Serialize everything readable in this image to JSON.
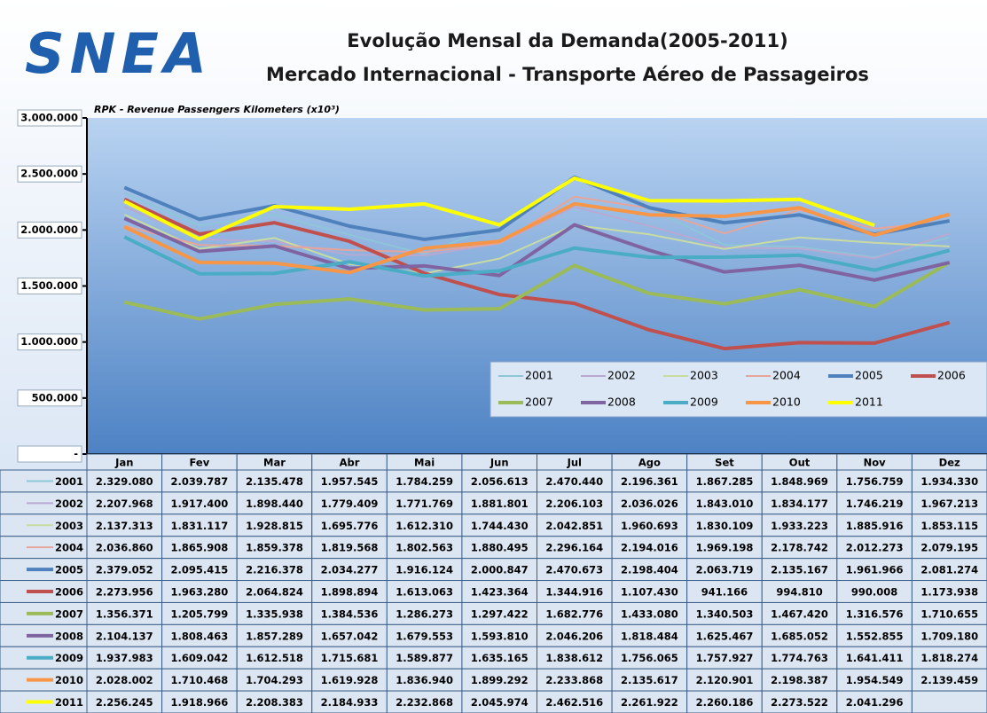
{
  "logo": "SNEA",
  "chart_data": {
    "type": "line",
    "title": "Evolução Mensal da Demanda(2005-2011)",
    "subtitle": "Mercado Internacional - Transporte Aéreo de Passageiros",
    "y_label": "RPK - Revenue Passengers Kilometers (x10³)",
    "categories": [
      "Jan",
      "Fev",
      "Mar",
      "Abr",
      "Mai",
      "Jun",
      "Jul",
      "Ago",
      "Set",
      "Out",
      "Nov",
      "Dez"
    ],
    "ylim": [
      0,
      3000000
    ],
    "yticks": [
      {
        "value": 0,
        "label": "-"
      },
      {
        "value": 500000,
        "label": "500.000"
      },
      {
        "value": 1000000,
        "label": "1.000.000"
      },
      {
        "value": 1500000,
        "label": "1.500.000"
      },
      {
        "value": 2000000,
        "label": "2.000.000"
      },
      {
        "value": 2500000,
        "label": "2.500.000"
      },
      {
        "value": 3000000,
        "label": "3.000.000"
      }
    ],
    "legend": "bottom-right",
    "series": [
      {
        "name": "2001",
        "color": "#8ec5d8",
        "values": [
          2329080,
          2039787,
          2135478,
          1957545,
          1784259,
          2056613,
          2470440,
          2196361,
          1867285,
          1848969,
          1756759,
          1934330
        ],
        "value_labels": [
          "2.329.080",
          "2.039.787",
          "2.135.478",
          "1.957.545",
          "1.784.259",
          "2.056.613",
          "2.470.440",
          "2.196.361",
          "1.867.285",
          "1.848.969",
          "1.756.759",
          "1.934.330"
        ]
      },
      {
        "name": "2002",
        "color": "#b9a9d2",
        "values": [
          2207968,
          1917400,
          1898440,
          1779409,
          1771769,
          1881801,
          2206103,
          2036026,
          1843010,
          1834177,
          1746219,
          1967213
        ],
        "value_labels": [
          "2.207.968",
          "1.917.400",
          "1.898.440",
          "1.779.409",
          "1.771.769",
          "1.881.801",
          "2.206.103",
          "2.036.026",
          "1.843.010",
          "1.834.177",
          "1.746.219",
          "1.967.213"
        ]
      },
      {
        "name": "2003",
        "color": "#c8dca2",
        "values": [
          2137313,
          1831117,
          1928815,
          1695776,
          1612310,
          1744430,
          2042851,
          1960693,
          1830109,
          1933223,
          1885916,
          1853115
        ],
        "value_labels": [
          "2.137.313",
          "1.831.117",
          "1.928.815",
          "1.695.776",
          "1.612.310",
          "1.744.430",
          "2.042.851",
          "1.960.693",
          "1.830.109",
          "1.933.223",
          "1.885.916",
          "1.853.115"
        ]
      },
      {
        "name": "2004",
        "color": "#e6a59a",
        "values": [
          2036860,
          1865908,
          1859378,
          1819568,
          1802563,
          1880495,
          2296164,
          2194016,
          1969198,
          2178742,
          2012273,
          2079195
        ],
        "value_labels": [
          "2.036.860",
          "1.865.908",
          "1.859.378",
          "1.819.568",
          "1.802.563",
          "1.880.495",
          "2.296.164",
          "2.194.016",
          "1.969.198",
          "2.178.742",
          "2.012.273",
          "2.079.195"
        ]
      },
      {
        "name": "2005",
        "color": "#4f81bd",
        "values": [
          2379052,
          2095415,
          2216378,
          2034277,
          1916124,
          2000847,
          2470673,
          2198404,
          2063719,
          2135167,
          1961966,
          2081274
        ],
        "value_labels": [
          "2.379.052",
          "2.095.415",
          "2.216.378",
          "2.034.277",
          "1.916.124",
          "2.000.847",
          "2.470.673",
          "2.198.404",
          "2.063.719",
          "2.135.167",
          "1.961.966",
          "2.081.274"
        ]
      },
      {
        "name": "2006",
        "color": "#c0504d",
        "values": [
          2273956,
          1963280,
          2064824,
          1898894,
          1613063,
          1423364,
          1344916,
          1107430,
          941166,
          994810,
          990008,
          1173938
        ],
        "value_labels": [
          "2.273.956",
          "1.963.280",
          "2.064.824",
          "1.898.894",
          "1.613.063",
          "1.423.364",
          "1.344.916",
          "1.107.430",
          "941.166",
          "994.810",
          "990.008",
          "1.173.938"
        ]
      },
      {
        "name": "2007",
        "color": "#9bbb59",
        "values": [
          1356371,
          1205799,
          1335938,
          1384536,
          1286273,
          1297422,
          1682776,
          1433080,
          1340503,
          1467420,
          1316576,
          1710655
        ],
        "value_labels": [
          "1.356.371",
          "1.205.799",
          "1.335.938",
          "1.384.536",
          "1.286.273",
          "1.297.422",
          "1.682.776",
          "1.433.080",
          "1.340.503",
          "1.467.420",
          "1.316.576",
          "1.710.655"
        ]
      },
      {
        "name": "2008",
        "color": "#8064a2",
        "values": [
          2104137,
          1808463,
          1857289,
          1657042,
          1679553,
          1593810,
          2046206,
          1818484,
          1625467,
          1685052,
          1552855,
          1709180
        ],
        "value_labels": [
          "2.104.137",
          "1.808.463",
          "1.857.289",
          "1.657.042",
          "1.679.553",
          "1.593.810",
          "2.046.206",
          "1.818.484",
          "1.625.467",
          "1.685.052",
          "1.552.855",
          "1.709.180"
        ]
      },
      {
        "name": "2009",
        "color": "#4bacc6",
        "values": [
          1937983,
          1609042,
          1612518,
          1715681,
          1589877,
          1635165,
          1838612,
          1756065,
          1757927,
          1774763,
          1641411,
          1818274
        ],
        "value_labels": [
          "1.937.983",
          "1.609.042",
          "1.612.518",
          "1.715.681",
          "1.589.877",
          "1.635.165",
          "1.838.612",
          "1.756.065",
          "1.757.927",
          "1.774.763",
          "1.641.411",
          "1.818.274"
        ]
      },
      {
        "name": "2010",
        "color": "#f79646",
        "values": [
          2028002,
          1710468,
          1704293,
          1619928,
          1836940,
          1899292,
          2233868,
          2135617,
          2120901,
          2198387,
          1954549,
          2139459
        ],
        "value_labels": [
          "2.028.002",
          "1.710.468",
          "1.704.293",
          "1.619.928",
          "1.836.940",
          "1.899.292",
          "2.233.868",
          "2.135.617",
          "2.120.901",
          "2.198.387",
          "1.954.549",
          "2.139.459"
        ]
      },
      {
        "name": "2011",
        "color": "#ffff00",
        "values": [
          2256245,
          1918966,
          2208383,
          2184933,
          2232868,
          2045974,
          2462516,
          2261922,
          2260186,
          2273522,
          2041296,
          null
        ],
        "value_labels": [
          "2.256.245",
          "1.918.966",
          "2.208.383",
          "2.184.933",
          "2.232.868",
          "2.045.974",
          "2.462.516",
          "2.261.922",
          "2.260.186",
          "2.273.522",
          "2.041.296",
          null
        ]
      }
    ]
  }
}
